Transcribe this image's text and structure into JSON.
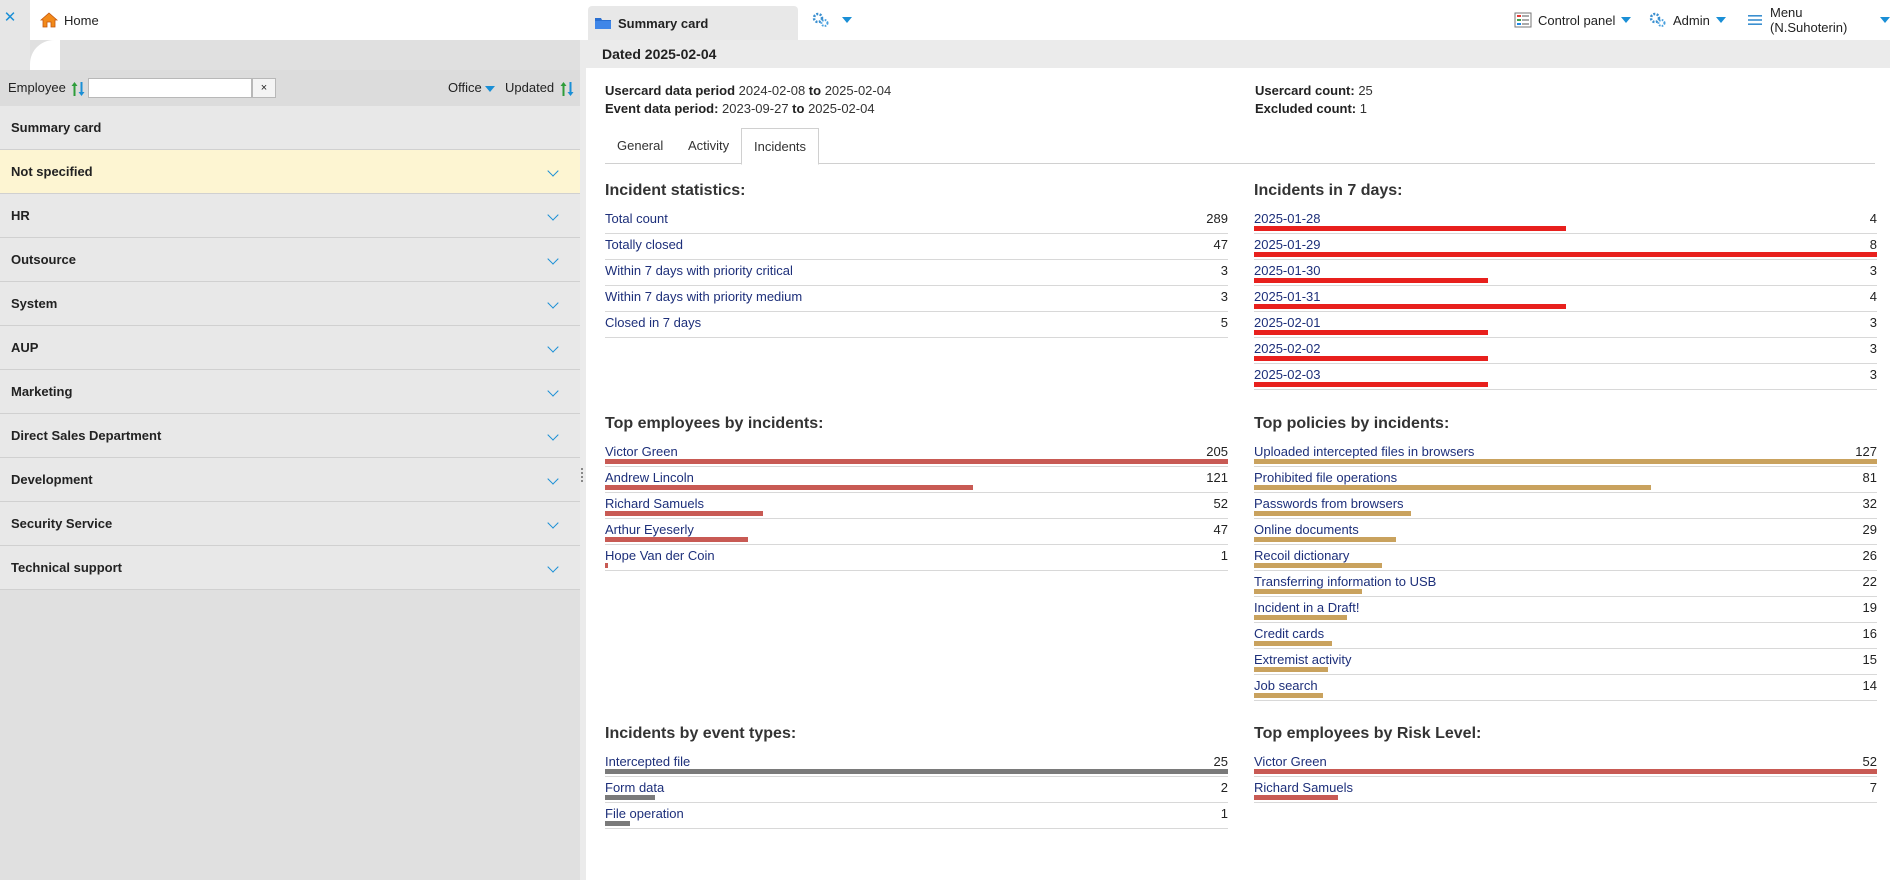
{
  "topbar": {
    "home_label": "Home",
    "summary_tab_label": "Summary card",
    "control_panel_label": "Control panel",
    "admin_label": "Admin",
    "user_menu_label": "Menu (N.Suhoterin)"
  },
  "sidebar": {
    "employee_label": "Employee",
    "employee_search_value": "",
    "clear_label": "×",
    "office_label": "Office",
    "updated_label": "Updated",
    "groups": [
      {
        "label": "Summary card"
      },
      {
        "label": "Not specified"
      },
      {
        "label": "HR"
      },
      {
        "label": "Outsource"
      },
      {
        "label": "System"
      },
      {
        "label": "AUP"
      },
      {
        "label": "Marketing"
      },
      {
        "label": "Direct Sales Department"
      },
      {
        "label": "Development"
      },
      {
        "label": "Security Service"
      },
      {
        "label": "Technical support"
      }
    ]
  },
  "main": {
    "dated": "Dated 2025-02-04",
    "meta": {
      "usercard_period_label": "Usercard data period",
      "usercard_from": "2024-02-08",
      "to_word": "to",
      "usercard_to": "2025-02-04",
      "event_period_label": "Event data period:",
      "event_from": "2023-09-27",
      "event_to": "2025-02-04",
      "usercard_count_label": "Usercard count:",
      "usercard_count": "25",
      "excluded_count_label": "Excluded count:",
      "excluded_count": "1"
    },
    "tabs": [
      {
        "label": "General"
      },
      {
        "label": "Activity"
      },
      {
        "label": "Incidents"
      }
    ],
    "active_tab": "Incidents",
    "incident_statistics": {
      "title": "Incident statistics:",
      "rows": [
        {
          "label": "Total count",
          "value": "289"
        },
        {
          "label": "Totally closed",
          "value": "47"
        },
        {
          "label": "Within 7 days with priority critical",
          "value": "3"
        },
        {
          "label": "Within 7 days with priority medium",
          "value": "3"
        },
        {
          "label": "Closed in 7 days",
          "value": "5"
        }
      ]
    },
    "incidents_7_days": {
      "title": "Incidents in 7 days:",
      "max": 8,
      "color": "#e8201d",
      "rows": [
        {
          "label": "2025-01-28",
          "value": 4
        },
        {
          "label": "2025-01-29",
          "value": 8
        },
        {
          "label": "2025-01-30",
          "value": 3
        },
        {
          "label": "2025-01-31",
          "value": 4
        },
        {
          "label": "2025-02-01",
          "value": 3
        },
        {
          "label": "2025-02-02",
          "value": 3
        },
        {
          "label": "2025-02-03",
          "value": 3
        }
      ]
    },
    "top_employees": {
      "title": "Top employees by incidents:",
      "max": 205,
      "color": "#c85a54",
      "rows": [
        {
          "label": "Victor Green",
          "value": 205
        },
        {
          "label": "Andrew Lincoln",
          "value": 121
        },
        {
          "label": "Richard Samuels",
          "value": 52
        },
        {
          "label": "Arthur Eyeserly",
          "value": 47
        },
        {
          "label": "Hope Van der Coin",
          "value": 1
        }
      ]
    },
    "top_policies": {
      "title": "Top policies by incidents:",
      "max": 127,
      "color": "#c9a25e",
      "rows": [
        {
          "label": "Uploaded intercepted files in browsers",
          "value": 127
        },
        {
          "label": "Prohibited file operations",
          "value": 81
        },
        {
          "label": "Passwords from browsers",
          "value": 32
        },
        {
          "label": "Online documents",
          "value": 29
        },
        {
          "label": "Recoil dictionary",
          "value": 26
        },
        {
          "label": "Transferring information to USB",
          "value": 22
        },
        {
          "label": "Incident in a Draft!",
          "value": 19
        },
        {
          "label": "Credit cards",
          "value": 16
        },
        {
          "label": "Extremist activity",
          "value": 15
        },
        {
          "label": "Job search",
          "value": 14
        }
      ]
    },
    "event_types": {
      "title": "Incidents by event types:",
      "max": 25,
      "color": "#7a7a7a",
      "rows": [
        {
          "label": "Intercepted file",
          "value": 25
        },
        {
          "label": "Form data",
          "value": 2
        },
        {
          "label": "File operation",
          "value": 1
        }
      ]
    },
    "risk_level": {
      "title": "Top employees by Risk Level:",
      "max": 52,
      "color": "#c85a54",
      "rows": [
        {
          "label": "Victor Green",
          "value": 52
        },
        {
          "label": "Richard Samuels",
          "value": 7
        }
      ]
    }
  }
}
